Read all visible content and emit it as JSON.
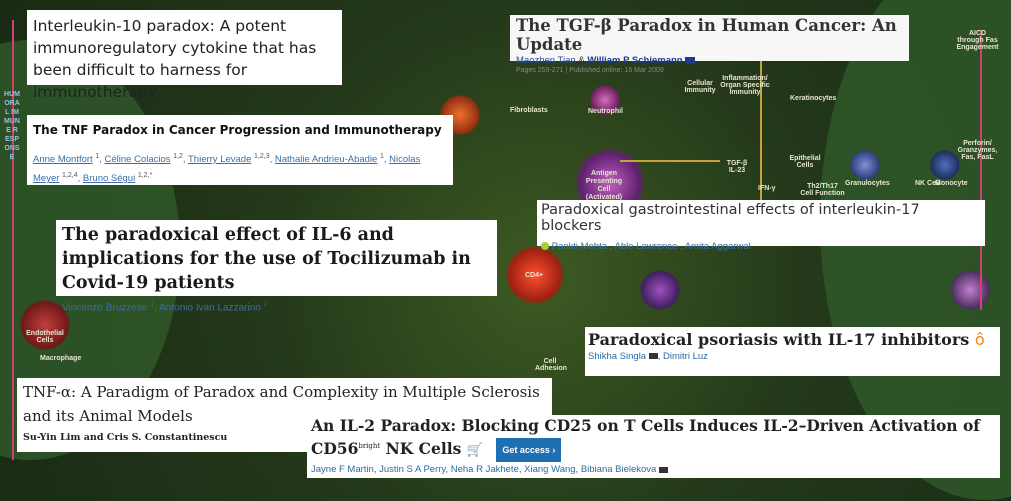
{
  "background": {
    "labels": [
      "HUMORAL IMMUNE RESPONSE",
      "Fibroblasts",
      "Endothelial Cells",
      "Neutrophil",
      "Antigen Presenting Cell (Activated)",
      "CD4+",
      "Cellular Immunity",
      "Inflammation/ Organ Specific Immunity",
      "Keratinocytes",
      "Epithelial Cells",
      "Granulocytes",
      "NK Cell",
      "Monocyte",
      "AICD through Fas Engagement",
      "Perforin/ Granzymes, Fas, FasL",
      "Macrophage",
      "Endothelial Cells",
      "Cell Adhesion",
      "Th2/Th17 Cell Function",
      "IFN-γ",
      "TGF-β IL-23"
    ],
    "colors": {
      "base": "#24381a",
      "zone": "#2f5a2a",
      "arrow": "#c9a13a"
    }
  },
  "cards": [
    {
      "title": "Interleukin-10 paradox: A potent immunoregulatory cytokine that has been difficult to harness for immunotherapy"
    },
    {
      "title": "The TNF Paradox in Cancer Progression and Immunotherapy",
      "authors": [
        {
          "name": "Anne Montfort",
          "sup": "1"
        },
        {
          "name": "Céline Colacios",
          "sup": "1,2"
        },
        {
          "name": "Thierry Levade",
          "sup": "1,2,3"
        },
        {
          "name": "Nathalie Andrieu-Abadie",
          "sup": "1"
        },
        {
          "name": "Nicolas Meyer",
          "sup": "1,2,4"
        },
        {
          "name": "Bruno Ségui",
          "sup": "1,2,*"
        }
      ]
    },
    {
      "title": "The paradoxical effect of IL-6 and implications for the use of Tocilizumab in Covid-19 patients",
      "authors": [
        {
          "name": "Vincenzo Bruzzese",
          "sup": "1"
        },
        {
          "name": "Antonio Ivan Lazzarino",
          "sup": "2"
        }
      ]
    },
    {
      "title": "The TGF-β Paradox in Human Cancer: An Update",
      "author1": "Maozhen Tian",
      "amp": "&",
      "author2": "William P Schiemann",
      "meta": "Pages 259-271 | Published online: 16 Mar 2009"
    },
    {
      "title": "Paradoxical gastrointestinal effects of interleukin-17 blockers",
      "authors": "Pankti Mehta , Able Lawrence , Amita Aggarwal"
    },
    {
      "title": "Paradoxical psoriasis with IL-17 inhibitors",
      "authors": "Shikha Singla",
      "authors2": ", Dimitri Luz"
    },
    {
      "title": "TNF-α: A Paradigm of Paradox and Complexity in Multiple Sclerosis and its Animal Models",
      "authors": "Su-Yin Lim and Cris S. Constantinescu"
    },
    {
      "title_a": "An IL-2 Paradox: Blocking CD25 on T Cells Induces IL-2–Driven Activation of CD56",
      "title_sup": "bright",
      "title_b": " NK Cells",
      "access_label": "Get access ›",
      "authors": "Jayne F Martin, Justin S A Perry, Neha R Jakhete, Xiang Wang, Bibiana Bielekova"
    }
  ],
  "icons": {
    "email": "envelope-icon",
    "open_access": "open-access-lock-icon",
    "cart": "cart-icon",
    "orcid": "orcid-icon"
  }
}
